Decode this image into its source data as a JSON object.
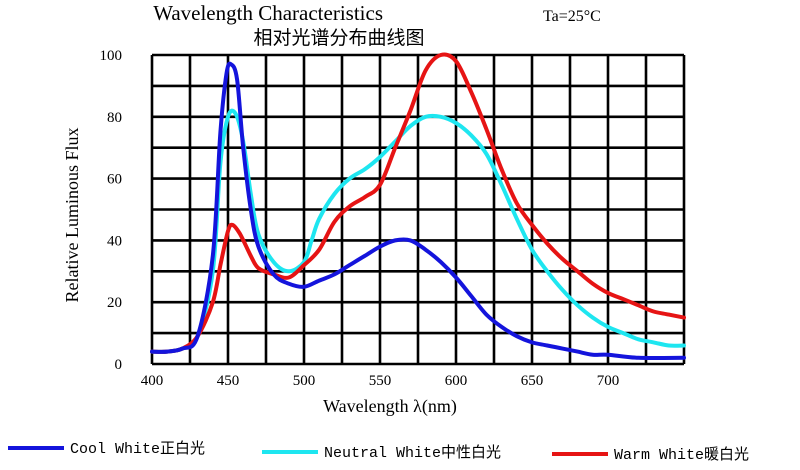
{
  "chart_data": {
    "type": "line",
    "title": "Wavelength Characteristics",
    "title_condition": "Ta=25°C",
    "subtitle": "相对光谱分布曲线图",
    "xlabel": "Wavelength λ(nm)",
    "ylabel": "Relative Luminous Flux",
    "xlim": [
      400,
      750
    ],
    "ylim": [
      0,
      100
    ],
    "x_ticks": [
      400,
      450,
      500,
      550,
      600,
      650,
      700
    ],
    "y_ticks": [
      0,
      20,
      40,
      60,
      80,
      100
    ],
    "grid": true,
    "legend_position": "bottom",
    "series": [
      {
        "name": "Cool White正白光",
        "color": "#1414dc",
        "points": [
          [
            400,
            4
          ],
          [
            410,
            4
          ],
          [
            420,
            5
          ],
          [
            430,
            9
          ],
          [
            440,
            35
          ],
          [
            445,
            75
          ],
          [
            449,
            94
          ],
          [
            452,
            97
          ],
          [
            456,
            92
          ],
          [
            460,
            70
          ],
          [
            465,
            50
          ],
          [
            470,
            38
          ],
          [
            480,
            29
          ],
          [
            490,
            26
          ],
          [
            500,
            25
          ],
          [
            510,
            27
          ],
          [
            520,
            29
          ],
          [
            530,
            32
          ],
          [
            540,
            35
          ],
          [
            550,
            38
          ],
          [
            560,
            40
          ],
          [
            570,
            40
          ],
          [
            580,
            37
          ],
          [
            590,
            33
          ],
          [
            600,
            28
          ],
          [
            610,
            22
          ],
          [
            620,
            16
          ],
          [
            630,
            12
          ],
          [
            640,
            9
          ],
          [
            650,
            7
          ],
          [
            660,
            6
          ],
          [
            670,
            5
          ],
          [
            680,
            4
          ],
          [
            690,
            3
          ],
          [
            700,
            3
          ],
          [
            720,
            2
          ],
          [
            750,
            2
          ]
        ]
      },
      {
        "name": "Neutral White中性白光",
        "color": "#1ee6f0",
        "points": [
          [
            400,
            4
          ],
          [
            410,
            4
          ],
          [
            420,
            5
          ],
          [
            430,
            9
          ],
          [
            440,
            30
          ],
          [
            445,
            65
          ],
          [
            450,
            80
          ],
          [
            455,
            81
          ],
          [
            460,
            72
          ],
          [
            465,
            55
          ],
          [
            470,
            42
          ],
          [
            480,
            33
          ],
          [
            490,
            30
          ],
          [
            500,
            33
          ],
          [
            505,
            40
          ],
          [
            510,
            47
          ],
          [
            520,
            55
          ],
          [
            530,
            60
          ],
          [
            540,
            63
          ],
          [
            550,
            67
          ],
          [
            560,
            72
          ],
          [
            570,
            77
          ],
          [
            580,
            80
          ],
          [
            590,
            80
          ],
          [
            600,
            78
          ],
          [
            610,
            74
          ],
          [
            620,
            68
          ],
          [
            630,
            58
          ],
          [
            640,
            47
          ],
          [
            650,
            37
          ],
          [
            660,
            30
          ],
          [
            670,
            24
          ],
          [
            680,
            19
          ],
          [
            690,
            15
          ],
          [
            700,
            12
          ],
          [
            710,
            10
          ],
          [
            720,
            8
          ],
          [
            730,
            7
          ],
          [
            740,
            6
          ],
          [
            750,
            6
          ]
        ]
      },
      {
        "name": "Warm White暖白光",
        "color": "#e61414",
        "points": [
          [
            400,
            4
          ],
          [
            410,
            4
          ],
          [
            420,
            5
          ],
          [
            430,
            9
          ],
          [
            440,
            20
          ],
          [
            445,
            32
          ],
          [
            450,
            43
          ],
          [
            453,
            45
          ],
          [
            458,
            42
          ],
          [
            465,
            35
          ],
          [
            470,
            31
          ],
          [
            480,
            29
          ],
          [
            490,
            28
          ],
          [
            500,
            32
          ],
          [
            510,
            37
          ],
          [
            520,
            46
          ],
          [
            530,
            51
          ],
          [
            540,
            54
          ],
          [
            550,
            58
          ],
          [
            560,
            70
          ],
          [
            570,
            82
          ],
          [
            580,
            95
          ],
          [
            590,
            100
          ],
          [
            600,
            98
          ],
          [
            610,
            88
          ],
          [
            620,
            76
          ],
          [
            630,
            63
          ],
          [
            640,
            52
          ],
          [
            650,
            45
          ],
          [
            660,
            39
          ],
          [
            670,
            34
          ],
          [
            680,
            30
          ],
          [
            690,
            26
          ],
          [
            700,
            23
          ],
          [
            710,
            21
          ],
          [
            720,
            19
          ],
          [
            730,
            17
          ],
          [
            740,
            16
          ],
          [
            750,
            15
          ]
        ]
      }
    ]
  }
}
